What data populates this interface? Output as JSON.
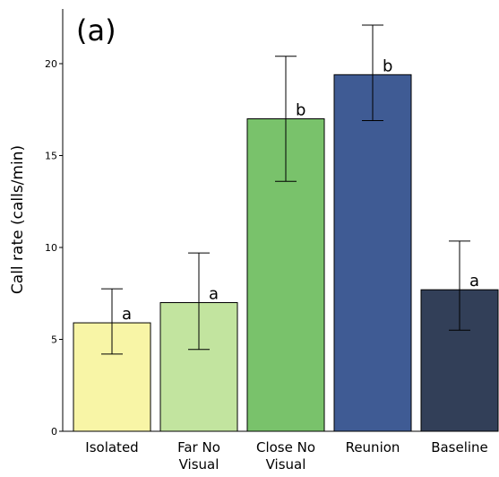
{
  "chart_data": {
    "type": "bar",
    "panel_label": "(a)",
    "title": "",
    "xlabel": "",
    "ylabel": "Call rate (calls/min)",
    "ylim": [
      0,
      23
    ],
    "yticks": [
      0,
      5,
      10,
      15,
      20
    ],
    "grid": false,
    "categories": [
      [
        "Isolated"
      ],
      [
        "Far No",
        "Visual"
      ],
      [
        "Close No",
        "Visual"
      ],
      [
        "Reunion"
      ],
      [
        "Baseline"
      ]
    ],
    "values": [
      5.9,
      7.0,
      17.0,
      19.4,
      7.7
    ],
    "error_low": [
      4.2,
      4.45,
      13.6,
      16.9,
      5.5
    ],
    "error_high": [
      7.75,
      9.7,
      20.4,
      22.1,
      10.35
    ],
    "significance": [
      "a",
      "a",
      "b",
      "b",
      "a"
    ],
    "colors": [
      "#f8f5a6",
      "#c2e49f",
      "#79c26b",
      "#3f5b94",
      "#323f58"
    ]
  }
}
